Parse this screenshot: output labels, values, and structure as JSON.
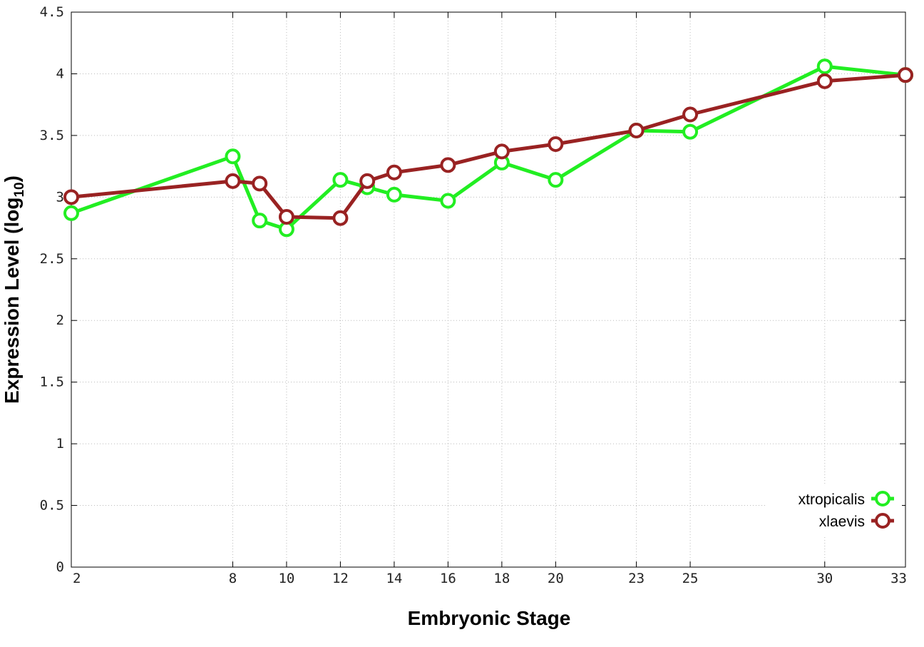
{
  "chart_data": {
    "type": "line",
    "title": "",
    "xlabel": "Embryonic Stage",
    "ylabel": {
      "main": "Expression Level (log",
      "sub": "10",
      "close": ")"
    },
    "x": [
      2,
      8,
      9,
      10,
      12,
      13,
      14,
      16,
      18,
      20,
      23,
      25,
      30,
      33
    ],
    "x_tick_labels": [
      "2",
      "8",
      "10",
      "12",
      "14",
      "16",
      "18",
      "20",
      "23",
      "25",
      "30",
      "33"
    ],
    "xlim": [
      2,
      33
    ],
    "ylim": [
      0,
      4.5
    ],
    "y_ticks": [
      0,
      0.5,
      1,
      1.5,
      2,
      2.5,
      3,
      3.5,
      4,
      4.5
    ],
    "y_tick_labels": [
      "0",
      "0.5",
      "1",
      "1.5",
      "2",
      "2.5",
      "3",
      "3.5",
      "4",
      "4.5"
    ],
    "grid": true,
    "legend_position": "bottom-right",
    "series": [
      {
        "name": "xtropicalis",
        "color": "#22ee22",
        "values": [
          2.87,
          3.33,
          2.81,
          2.74,
          3.14,
          3.08,
          3.02,
          2.97,
          3.28,
          3.14,
          3.54,
          3.53,
          4.06,
          3.99
        ]
      },
      {
        "name": "xlaevis",
        "color": "#992222",
        "values": [
          3.0,
          3.13,
          3.11,
          2.84,
          2.83,
          3.13,
          3.2,
          3.26,
          3.37,
          3.43,
          3.54,
          3.67,
          3.94,
          3.99
        ]
      }
    ]
  }
}
